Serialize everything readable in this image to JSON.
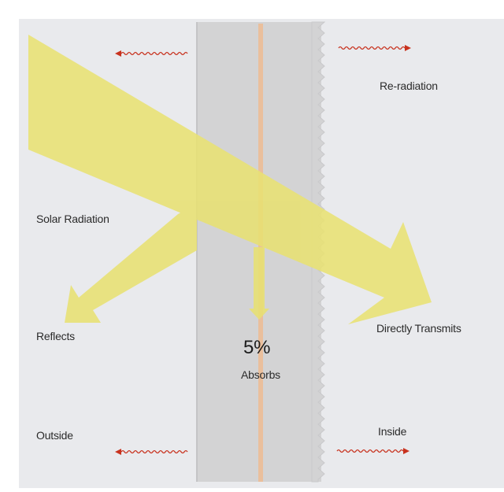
{
  "labels": {
    "solar_radiation": "Solar Radiation",
    "reflects": "Reflects",
    "re_radiation": "Re-radiation",
    "directly_transmits": "Directly Transmits",
    "absorbs_percent": "5%",
    "absorbs": "Absorbs",
    "outside": "Outside",
    "inside": "Inside"
  },
  "colors": {
    "background": "#e9eaed",
    "glass": "#d3d3d4",
    "glass_edge": "#c4c4c6",
    "glass_center_line": "#f2b98a",
    "solar_beam": "#e8e173",
    "heat_wave": "#c8321e"
  },
  "icons": {
    "heat_wave_arrows": "wavy-arrow-icon"
  }
}
